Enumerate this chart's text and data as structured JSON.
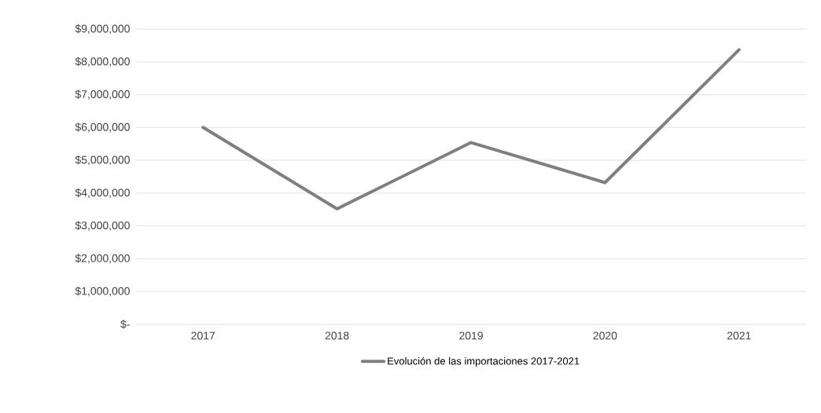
{
  "chart_data": {
    "type": "line",
    "categories": [
      "2017",
      "2018",
      "2019",
      "2020",
      "2021"
    ],
    "series": [
      {
        "name": "Evolución de las importaciones 2017-2021",
        "color": "#7f7f7f",
        "values": [
          6000000,
          3520000,
          5540000,
          4320000,
          8370000
        ]
      }
    ],
    "ylim": [
      0,
      9000000
    ],
    "yticks": [
      {
        "value": 0,
        "label": "$-"
      },
      {
        "value": 1000000,
        "label": "$1,000,000"
      },
      {
        "value": 2000000,
        "label": "$2,000,000"
      },
      {
        "value": 3000000,
        "label": "$3,000,000"
      },
      {
        "value": 4000000,
        "label": "$4,000,000"
      },
      {
        "value": 5000000,
        "label": "$5,000,000"
      },
      {
        "value": 6000000,
        "label": "$6,000,000"
      },
      {
        "value": 7000000,
        "label": "$7,000,000"
      },
      {
        "value": 8000000,
        "label": "$8,000,000"
      },
      {
        "value": 9000000,
        "label": "$9,000,000"
      }
    ],
    "grid": "y",
    "legend": "bottom",
    "marker": "none",
    "line_style": "solid"
  }
}
